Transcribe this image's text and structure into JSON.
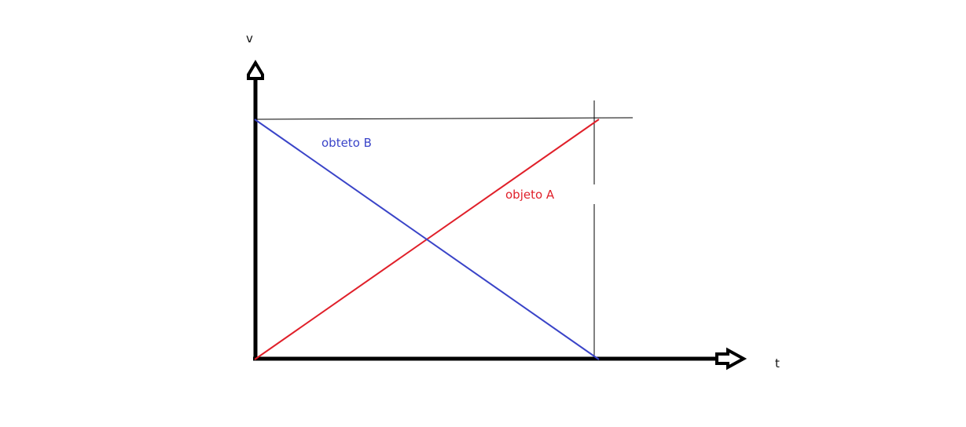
{
  "chart_data": {
    "type": "line",
    "xlabel": "t",
    "ylabel": "v",
    "series": [
      {
        "name": "objeto A",
        "color": "#e0202a",
        "points": [
          [
            0,
            0
          ],
          [
            1,
            1
          ]
        ]
      },
      {
        "name": "obteto B",
        "color": "#3a44c8",
        "points": [
          [
            0,
            1
          ],
          [
            1,
            0
          ]
        ]
      }
    ]
  },
  "colors": {
    "axis": "#000000",
    "guide": "#000000"
  }
}
